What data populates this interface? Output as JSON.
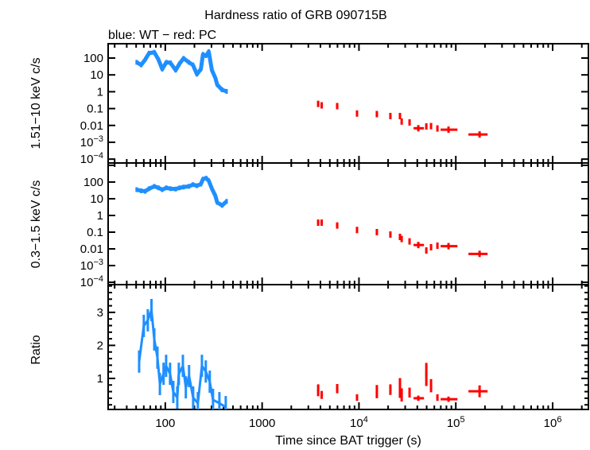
{
  "chart_data": {
    "type": "scatter",
    "title": "Hardness ratio of GRB 090715B",
    "subtitle": "blue: WT − red: PC",
    "xlabel": "Time since BAT trigger (s)",
    "xscale": "log",
    "xlim": [
      25.7,
      2340000
    ],
    "xticks": [
      "100",
      "1000",
      "10^4",
      "10^5",
      "10^6"
    ],
    "xtick_values": [
      100,
      1000,
      10000,
      100000,
      1000000
    ],
    "colors": {
      "WT": "#1f8fff",
      "PC": "#ff0000"
    },
    "panels": [
      {
        "ylabel": "1.51−10 keV c/s",
        "yscale": "log",
        "ylim": [
          5.89e-05,
          708
        ],
        "yticks": [
          "100",
          "10",
          "1",
          "0.1",
          "0.01",
          "10^−3",
          "10^−4"
        ],
        "ytick_values": [
          100,
          10,
          1,
          0.1,
          0.01,
          0.001,
          0.0001
        ],
        "series": [
          {
            "mode": "WT",
            "x": [
              50.6,
              56.4,
              62,
              68,
              77,
              85,
              93,
              102.5,
              113,
              128,
              140.5,
              154.5,
              175,
              193,
              212,
              233,
              245,
              264,
              281,
              303,
              329,
              344,
              386,
              430
            ],
            "y": [
              56,
              39,
              81,
              195,
              220,
              81,
              22,
              56,
              52,
              19,
              47,
              96,
              56,
              39,
              11,
              22,
              165,
              138,
              240,
              19,
              6.5,
              2.6,
              1.3,
              1.05
            ]
          },
          {
            "mode": "PC",
            "x": [
              3790,
              4120,
              5960,
              9550,
              15300,
              21100,
              26500,
              27600,
              33300,
              41000,
              49600,
              55500,
              64600,
              84100,
              176000
            ],
            "xerr_low": [
              3700,
              4000,
              5800,
              9300,
              14900,
              20600,
              25900,
              27000,
              32500,
              36600,
              48400,
              54200,
              63000,
              69700,
              135000
            ],
            "xerr_high": [
              3880,
              4240,
              6120,
              9800,
              15700,
              21600,
              27100,
              28200,
              34100,
              46900,
              50800,
              56800,
              66200,
              104000,
              213000
            ],
            "y": [
              0.19,
              0.155,
              0.14,
              0.051,
              0.047,
              0.036,
              0.036,
              0.017,
              0.015,
              0.0068,
              0.0087,
              0.0091,
              0.0066,
              0.0056,
              0.0029
            ]
          }
        ]
      },
      {
        "ylabel": "0.3−1.5 keV c/s",
        "yscale": "log",
        "ylim": [
          7.24e-05,
          1380
        ],
        "yticks": [
          "100",
          "10",
          "1",
          "0.1",
          "0.01",
          "10^−3",
          "10^−4"
        ],
        "ytick_values": [
          100,
          10,
          1,
          0.1,
          0.01,
          0.001,
          0.0001
        ],
        "series": [
          {
            "mode": "WT",
            "x": [
              50.6,
              56.4,
              62,
              68,
              77,
              85,
              93,
              102.5,
              113,
              128,
              140.5,
              154.5,
              175,
              193,
              212,
              233,
              245,
              264,
              281,
              303,
              329,
              344,
              386,
              430
            ],
            "y": [
              35,
              30,
              28,
              40,
              55,
              45,
              35,
              45,
              40,
              38,
              45,
              50,
              55,
              70,
              60,
              75,
              150,
              170,
              120,
              40,
              15,
              6,
              4,
              7
            ]
          },
          {
            "mode": "PC",
            "x": [
              3790,
              4120,
              5960,
              9550,
              15300,
              21100,
              26500,
              27600,
              33300,
              41000,
              49600,
              55500,
              64600,
              84100,
              176000
            ],
            "xerr_low": [
              3700,
              4000,
              5800,
              9300,
              14900,
              20600,
              25900,
              27000,
              32500,
              36600,
              48400,
              54200,
              63000,
              69700,
              135000
            ],
            "xerr_high": [
              3880,
              4240,
              6120,
              9800,
              15700,
              21600,
              27100,
              28200,
              34100,
              46900,
              50800,
              56800,
              66200,
              104000,
              213000
            ],
            "y": [
              0.37,
              0.37,
              0.25,
              0.135,
              0.1,
              0.072,
              0.052,
              0.039,
              0.028,
              0.017,
              0.008,
              0.0125,
              0.0155,
              0.0145,
              0.005
            ]
          }
        ]
      },
      {
        "ylabel": "Ratio",
        "yscale": "linear",
        "ylim": [
          0.06,
          3.84
        ],
        "yticks": [
          "1",
          "2",
          "3"
        ],
        "ytick_values": [
          1,
          2,
          3
        ],
        "series": [
          {
            "mode": "WT",
            "x": [
              53.7,
              60,
              66,
              72,
              77,
              83,
              88,
              96,
              102,
              112,
              121,
              133,
              138,
              152,
              163,
              176,
              194,
              217,
              239,
              262,
              288,
              311,
              362,
              421
            ],
            "y": [
              1.51,
              2.59,
              2.76,
              3.07,
              2.18,
              1.63,
              0.83,
              1.14,
              1.38,
              1.14,
              0.59,
              0.42,
              1.14,
              1.38,
              0.73,
              1.07,
              0.42,
              0.25,
              1.38,
              1.21,
              0.9,
              0.35,
              0.25,
              0.13
            ]
          },
          {
            "mode": "PC",
            "x": [
              3790,
              4120,
              5960,
              9550,
              15300,
              21100,
              26500,
              27600,
              33300,
              41000,
              49600,
              55500,
              64600,
              84100,
              176000
            ],
            "xerr_low": [
              3700,
              4000,
              5800,
              9300,
              14900,
              20600,
              25900,
              27000,
              32500,
              36600,
              48400,
              54200,
              63000,
              69700,
              135000
            ],
            "xerr_high": [
              3880,
              4240,
              6120,
              9800,
              15700,
              21600,
              27100,
              28200,
              34100,
              46900,
              50800,
              56800,
              66200,
              104000,
              213000
            ],
            "y": [
              0.64,
              0.5,
              0.69,
              0.42,
              0.6,
              0.66,
              0.71,
              0.5,
              0.57,
              0.4,
              1.12,
              0.78,
              0.42,
              0.37,
              0.61
            ],
            "yerr": [
              0.18,
              0.12,
              0.14,
              0.1,
              0.2,
              0.16,
              0.3,
              0.2,
              0.15,
              0.08,
              0.35,
              0.2,
              0.1,
              0.08,
              0.18
            ]
          }
        ]
      }
    ]
  }
}
